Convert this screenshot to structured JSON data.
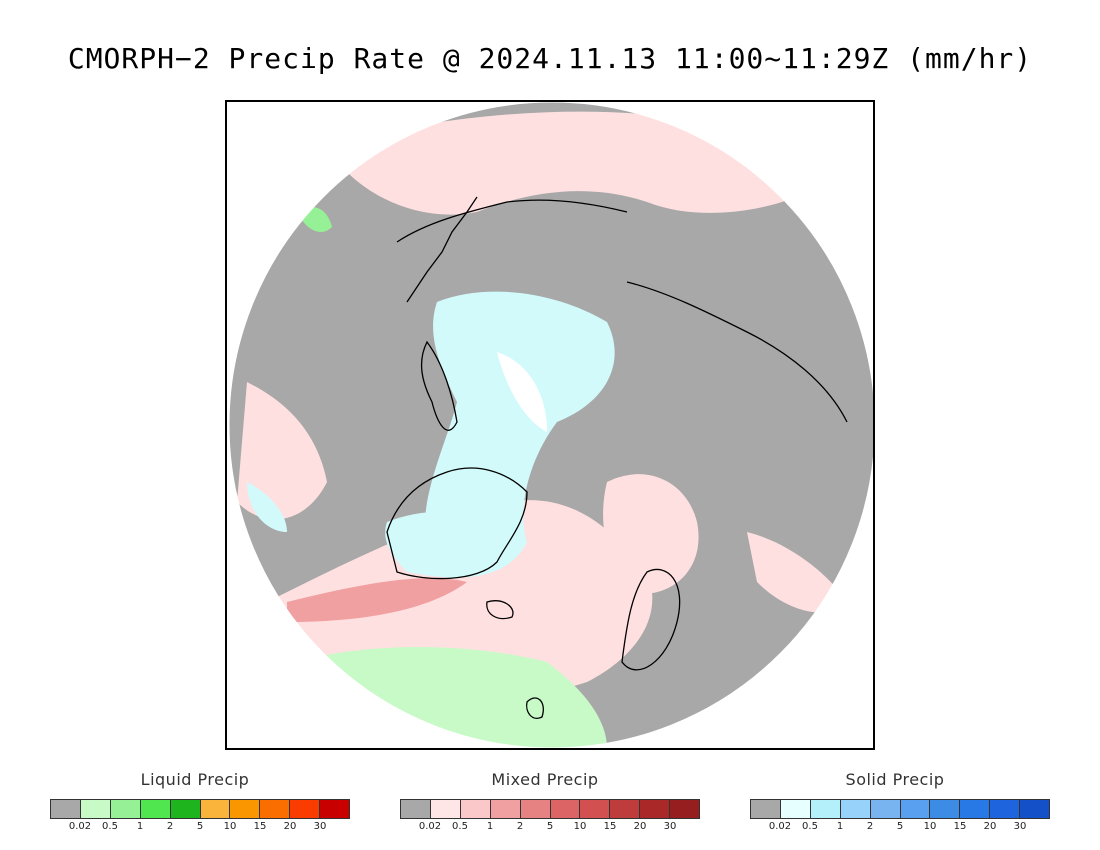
{
  "title": "CMORPH−2 Precip Rate @ 2024.11.13 11:00~11:29Z (mm/hr)",
  "map": {
    "projection": "north polar stereographic",
    "region": "Arctic / Northern Hemisphere high latitudes",
    "colors": {
      "no_precip": "#a8a8a8",
      "coast": "#000000",
      "outside": "#ffffff"
    }
  },
  "legends": [
    {
      "title": "Liquid Precip",
      "colors": [
        "#a8a8a8",
        "#c8fac8",
        "#96f096",
        "#50e650",
        "#1eb41e",
        "#fab43c",
        "#fa9600",
        "#fa6e00",
        "#fa3c00",
        "#c80000"
      ],
      "ticks": [
        "0.02",
        "0.5",
        "1",
        "2",
        "5",
        "10",
        "15",
        "20",
        "30"
      ]
    },
    {
      "title": "Mixed Precip",
      "colors": [
        "#a8a8a8",
        "#ffe6e6",
        "#fac8c8",
        "#f0a0a0",
        "#e68282",
        "#dc6464",
        "#d25050",
        "#be3c3c",
        "#aa2828",
        "#961e1e"
      ],
      "ticks": [
        "0.02",
        "0.5",
        "1",
        "2",
        "5",
        "10",
        "15",
        "20",
        "30"
      ]
    },
    {
      "title": "Solid Precip",
      "colors": [
        "#a8a8a8",
        "#e6ffff",
        "#b4f0fa",
        "#96d2fa",
        "#78b4f0",
        "#5aa0f0",
        "#3c8ce6",
        "#2878e6",
        "#1e64dc",
        "#1450c8"
      ],
      "ticks": [
        "0.02",
        "0.5",
        "1",
        "2",
        "5",
        "10",
        "15",
        "20",
        "30"
      ]
    }
  ]
}
